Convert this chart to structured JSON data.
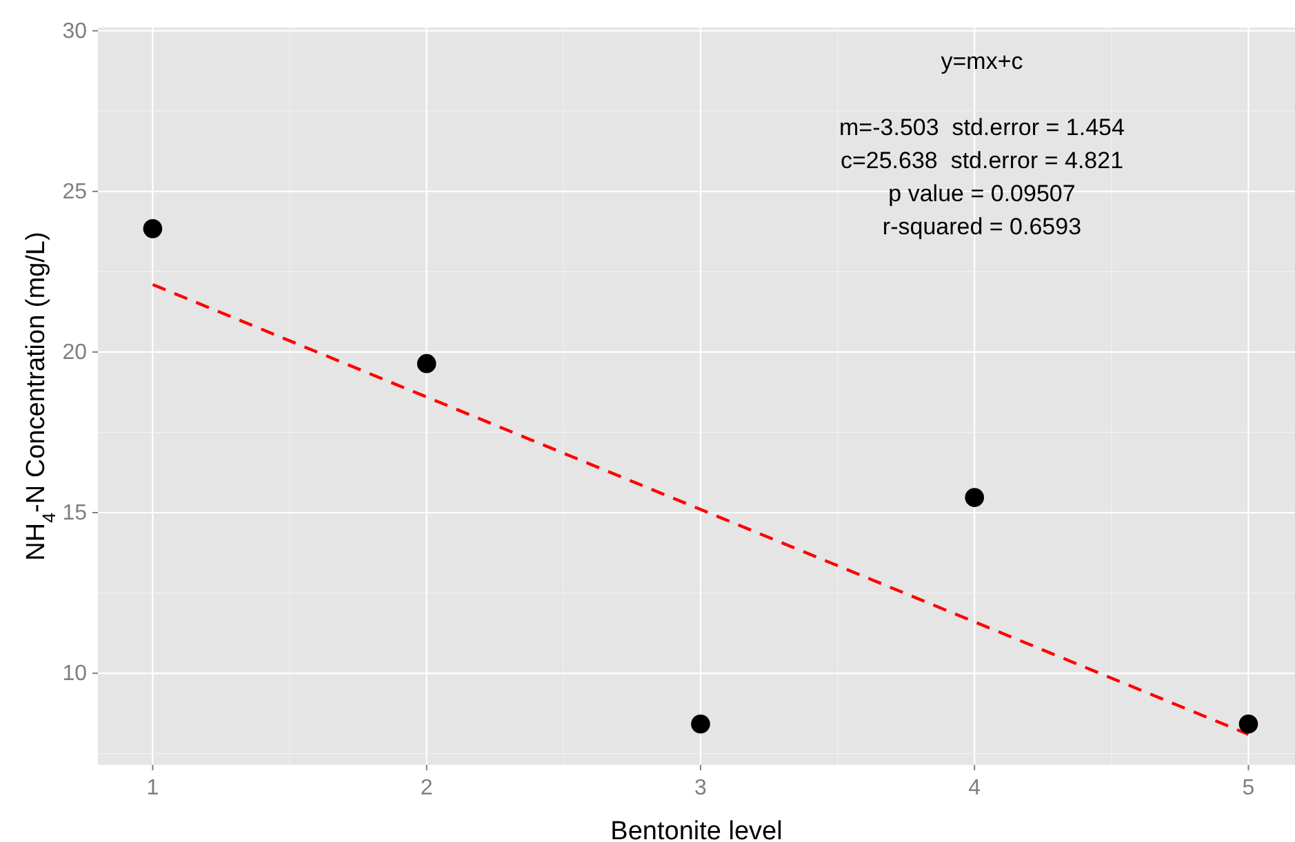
{
  "chart_data": {
    "type": "scatter",
    "xlabel": "Bentonite level",
    "ylabel": "NH$_{4}$-N Concentration (mg/L)",
    "xlim": [
      0.8,
      5.17
    ],
    "xticks": [
      1,
      2,
      3,
      4,
      5
    ],
    "ylim": [
      7.15,
      30.1
    ],
    "yticks": [
      10,
      15,
      20,
      25,
      30
    ],
    "grid": true,
    "series": [
      {
        "color": "#000000",
        "marker": "circle",
        "x": [
          1,
          2,
          3,
          4,
          5
        ],
        "values": [
          23.84,
          19.64,
          8.42,
          15.47,
          8.42
        ]
      },
      {
        "type": "line",
        "color": "#ff0000",
        "line_style": "dashed",
        "marker": "none",
        "x": [
          1,
          5
        ],
        "values": [
          22.1,
          8.1
        ]
      }
    ],
    "annotations": [
      "y=mx+c",
      "m=-3.503  std.error = 1.454",
      "c=25.638  std.error = 4.821",
      "p value = 0.09507",
      "r-squared = 0.6593"
    ]
  }
}
